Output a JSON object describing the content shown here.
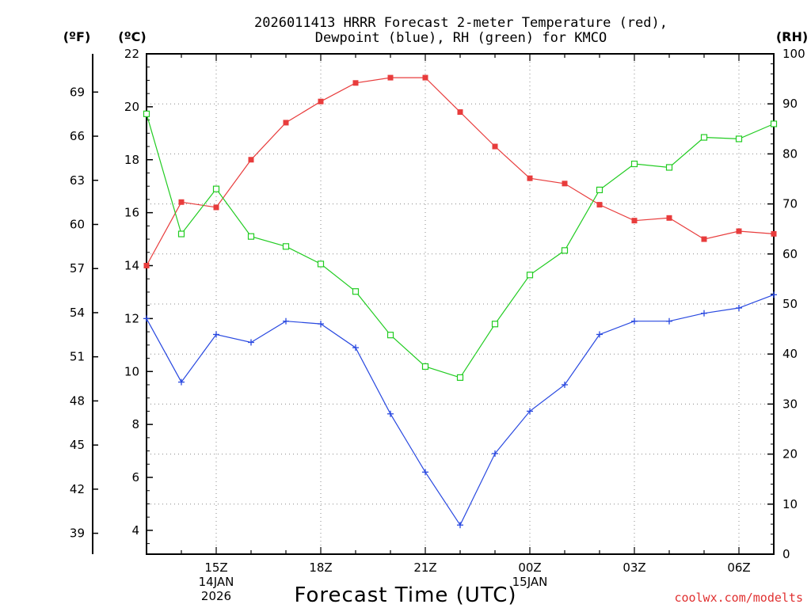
{
  "chart_data": {
    "type": "line",
    "title_lines": [
      "2026011413 HRRR Forecast 2-meter Temperature (red),",
      "Dewpoint (blue), RH (green) for KMCO"
    ],
    "xlabel": "Forecast Time (UTC)",
    "credit": "coolwx.com/modelts",
    "units": {
      "fahrenheit": "(ºF)",
      "celsius": "(ºC)",
      "rh": "(RH)"
    },
    "x_range_hours": [
      0,
      18
    ],
    "x_ticks": [
      {
        "hour": 2,
        "lines": [
          "15Z",
          "14JAN",
          "2026"
        ]
      },
      {
        "hour": 5,
        "lines": [
          "18Z"
        ]
      },
      {
        "hour": 8,
        "lines": [
          "21Z"
        ]
      },
      {
        "hour": 11,
        "lines": [
          "00Z",
          "15JAN"
        ]
      },
      {
        "hour": 14,
        "lines": [
          "03Z"
        ]
      },
      {
        "hour": 17,
        "lines": [
          "06Z"
        ]
      }
    ],
    "celsius_axis": {
      "range": [
        3.1,
        22
      ],
      "ticks": [
        "4",
        "6",
        "8",
        "10",
        "12",
        "14",
        "16",
        "18",
        "20",
        "22"
      ]
    },
    "fahrenheit_axis": {
      "ticks": [
        "39",
        "42",
        "45",
        "48",
        "51",
        "54",
        "57",
        "60",
        "63",
        "66",
        "69"
      ]
    },
    "rh_axis": {
      "range": [
        0,
        100
      ],
      "ticks": [
        "0",
        "10",
        "20",
        "30",
        "40",
        "50",
        "60",
        "70",
        "80",
        "90",
        "100"
      ]
    },
    "series": [
      {
        "name": "Temperature",
        "units": "C",
        "color": "#e83c3c",
        "marker": "filled-square",
        "x": [
          0,
          1,
          2,
          3,
          4,
          5,
          6,
          7,
          8,
          9,
          10,
          11,
          12,
          13,
          14,
          15,
          16,
          17,
          18
        ],
        "values": [
          14.0,
          16.4,
          16.2,
          18.0,
          19.4,
          20.2,
          20.9,
          21.1,
          21.1,
          19.8,
          18.5,
          17.3,
          17.1,
          16.3,
          15.7,
          15.8,
          15.0,
          15.3,
          15.2
        ]
      },
      {
        "name": "Dewpoint",
        "units": "C",
        "color": "#2848e0",
        "marker": "plus",
        "x": [
          0,
          1,
          2,
          3,
          4,
          5,
          6,
          7,
          8,
          9,
          10,
          11,
          12,
          13,
          14,
          15,
          16,
          17,
          18
        ],
        "values": [
          12.0,
          9.6,
          11.4,
          11.1,
          11.9,
          11.8,
          10.9,
          8.4,
          6.2,
          4.2,
          6.9,
          8.5,
          9.5,
          11.4,
          11.9,
          11.9,
          12.2,
          12.4,
          12.9
        ]
      },
      {
        "name": "RH",
        "units": "%",
        "color": "#22cc22",
        "marker": "open-square",
        "x": [
          0,
          1,
          2,
          3,
          4,
          5,
          6,
          7,
          8,
          9,
          10,
          11,
          12,
          13,
          14,
          15,
          16,
          17,
          18
        ],
        "values": [
          88.0,
          64.0,
          73.0,
          63.5,
          61.5,
          58.0,
          52.5,
          43.8,
          37.5,
          35.3,
          46.0,
          55.8,
          60.7,
          72.8,
          78.0,
          77.3,
          83.3,
          83.0,
          86.0
        ]
      }
    ]
  }
}
